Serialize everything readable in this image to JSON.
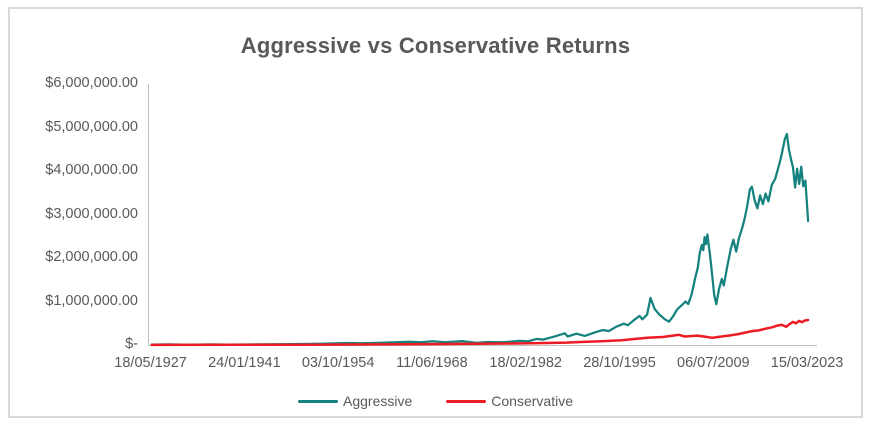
{
  "chart_data": {
    "type": "line",
    "title": "Aggressive vs Conservative Returns",
    "legend_position": "bottom",
    "grid": "off",
    "colors": {
      "title_text": "#595959",
      "axis_text": "#595959",
      "axis_line": "#BFBFBF",
      "frame_border": "#D9D9D9",
      "background": "#FFFFFF"
    },
    "x_axis": {
      "label": "",
      "min_year": 1927.0,
      "max_year": 2024.5,
      "tick_labels": [
        "18/05/1927",
        "24/01/1941",
        "03/10/1954",
        "11/06/1968",
        "18/02/1982",
        "28/10/1995",
        "06/07/2009",
        "15/03/2023"
      ],
      "tick_years": [
        1927.38,
        1941.07,
        1954.75,
        1968.44,
        1982.13,
        1995.82,
        2009.51,
        2023.2
      ]
    },
    "y_axis": {
      "label": "",
      "min": 0,
      "max": 6000000,
      "format": "currency",
      "tick_labels": [
        "$6,000,000.00",
        "$5,000,000.00",
        "$4,000,000.00",
        "$3,000,000.00",
        "$2,000,000.00",
        "$1,000,000.00",
        "$-"
      ],
      "tick_values": [
        6000000,
        5000000,
        4000000,
        3000000,
        2000000,
        1000000,
        0
      ]
    },
    "series": [
      {
        "name": "Aggressive",
        "color": "#15827D",
        "stroke_width": 2.25,
        "x": [
          1927.4,
          1930.0,
          1932.5,
          1936.0,
          1938.5,
          1941.0,
          1945.0,
          1948.0,
          1952.0,
          1956.0,
          1958.0,
          1962.0,
          1965.0,
          1966.7,
          1968.4,
          1970.2,
          1972.7,
          1974.8,
          1976.5,
          1978.6,
          1981.0,
          1982.3,
          1983.6,
          1984.5,
          1986.1,
          1987.7,
          1988.1,
          1989.4,
          1990.6,
          1992.4,
          1993.3,
          1994.1,
          1995.2,
          1996.3,
          1996.9,
          1997.8,
          1998.6,
          1999.0,
          1999.7,
          2000.2,
          2000.8,
          2001.5,
          2002.3,
          2002.9,
          2003.5,
          2004.1,
          2004.8,
          2005.3,
          2005.7,
          2006.2,
          2006.7,
          2007.1,
          2007.4,
          2007.7,
          2007.9,
          2008.1,
          2008.3,
          2008.5,
          2008.7,
          2008.9,
          2009.2,
          2009.5,
          2009.8,
          2010.2,
          2010.6,
          2010.9,
          2011.4,
          2011.9,
          2012.3,
          2012.7,
          2013.1,
          2013.6,
          2013.9,
          2014.3,
          2014.7,
          2015.0,
          2015.4,
          2015.8,
          2016.2,
          2016.6,
          2017.0,
          2017.4,
          2017.9,
          2018.4,
          2018.9,
          2019.3,
          2019.8,
          2020.1,
          2020.4,
          2020.7,
          2021.0,
          2021.3,
          2021.6,
          2021.9,
          2022.2,
          2022.5,
          2022.8,
          2023.2
        ],
        "y": [
          10000,
          14000,
          6000,
          13000,
          9000,
          11000,
          17000,
          20000,
          30000,
          45000,
          40000,
          58000,
          75000,
          62000,
          85000,
          65000,
          90000,
          48000,
          70000,
          62000,
          95000,
          85000,
          140000,
          125000,
          190000,
          270000,
          195000,
          260000,
          210000,
          305000,
          345000,
          320000,
          420000,
          490000,
          455000,
          575000,
          670000,
          590000,
          700000,
          1080000,
          830000,
          700000,
          590000,
          535000,
          660000,
          820000,
          920000,
          1000000,
          940000,
          1160000,
          1520000,
          1780000,
          2120000,
          2300000,
          2180000,
          2480000,
          2320000,
          2540000,
          2300000,
          2050000,
          1600000,
          1150000,
          940000,
          1280000,
          1520000,
          1370000,
          1800000,
          2200000,
          2420000,
          2150000,
          2450000,
          2700000,
          2880000,
          3180000,
          3580000,
          3640000,
          3320000,
          3140000,
          3440000,
          3240000,
          3480000,
          3300000,
          3680000,
          3820000,
          4100000,
          4350000,
          4730000,
          4850000,
          4500000,
          4270000,
          4080000,
          3620000,
          4050000,
          3700000,
          4100000,
          3650000,
          3780000,
          2850000
        ]
      },
      {
        "name": "Conservative",
        "color": "#ED1C24",
        "stroke_width": 2.5,
        "x": [
          1927.4,
          1940.0,
          1950.0,
          1960.0,
          1968.0,
          1975.0,
          1980.0,
          1985.0,
          1988.0,
          1990.0,
          1993.0,
          1996.0,
          1998.0,
          2000.0,
          2002.0,
          2003.5,
          2004.3,
          2005.2,
          2006.0,
          2007.0,
          2008.0,
          2009.2,
          2010.0,
          2011.0,
          2012.0,
          2013.0,
          2014.0,
          2015.0,
          2016.0,
          2017.0,
          2018.0,
          2018.7,
          2019.3,
          2020.0,
          2020.5,
          2021.0,
          2021.4,
          2021.9,
          2022.3,
          2022.7,
          2023.2
        ],
        "y": [
          3000,
          5000,
          8000,
          13000,
          20000,
          28000,
          35000,
          45000,
          55000,
          68000,
          85000,
          110000,
          140000,
          170000,
          185000,
          215000,
          235000,
          195000,
          205000,
          215000,
          195000,
          165000,
          185000,
          205000,
          225000,
          250000,
          285000,
          320000,
          335000,
          375000,
          410000,
          445000,
          465000,
          420000,
          480000,
          530000,
          500000,
          555000,
          525000,
          560000,
          575000
        ]
      }
    ]
  }
}
